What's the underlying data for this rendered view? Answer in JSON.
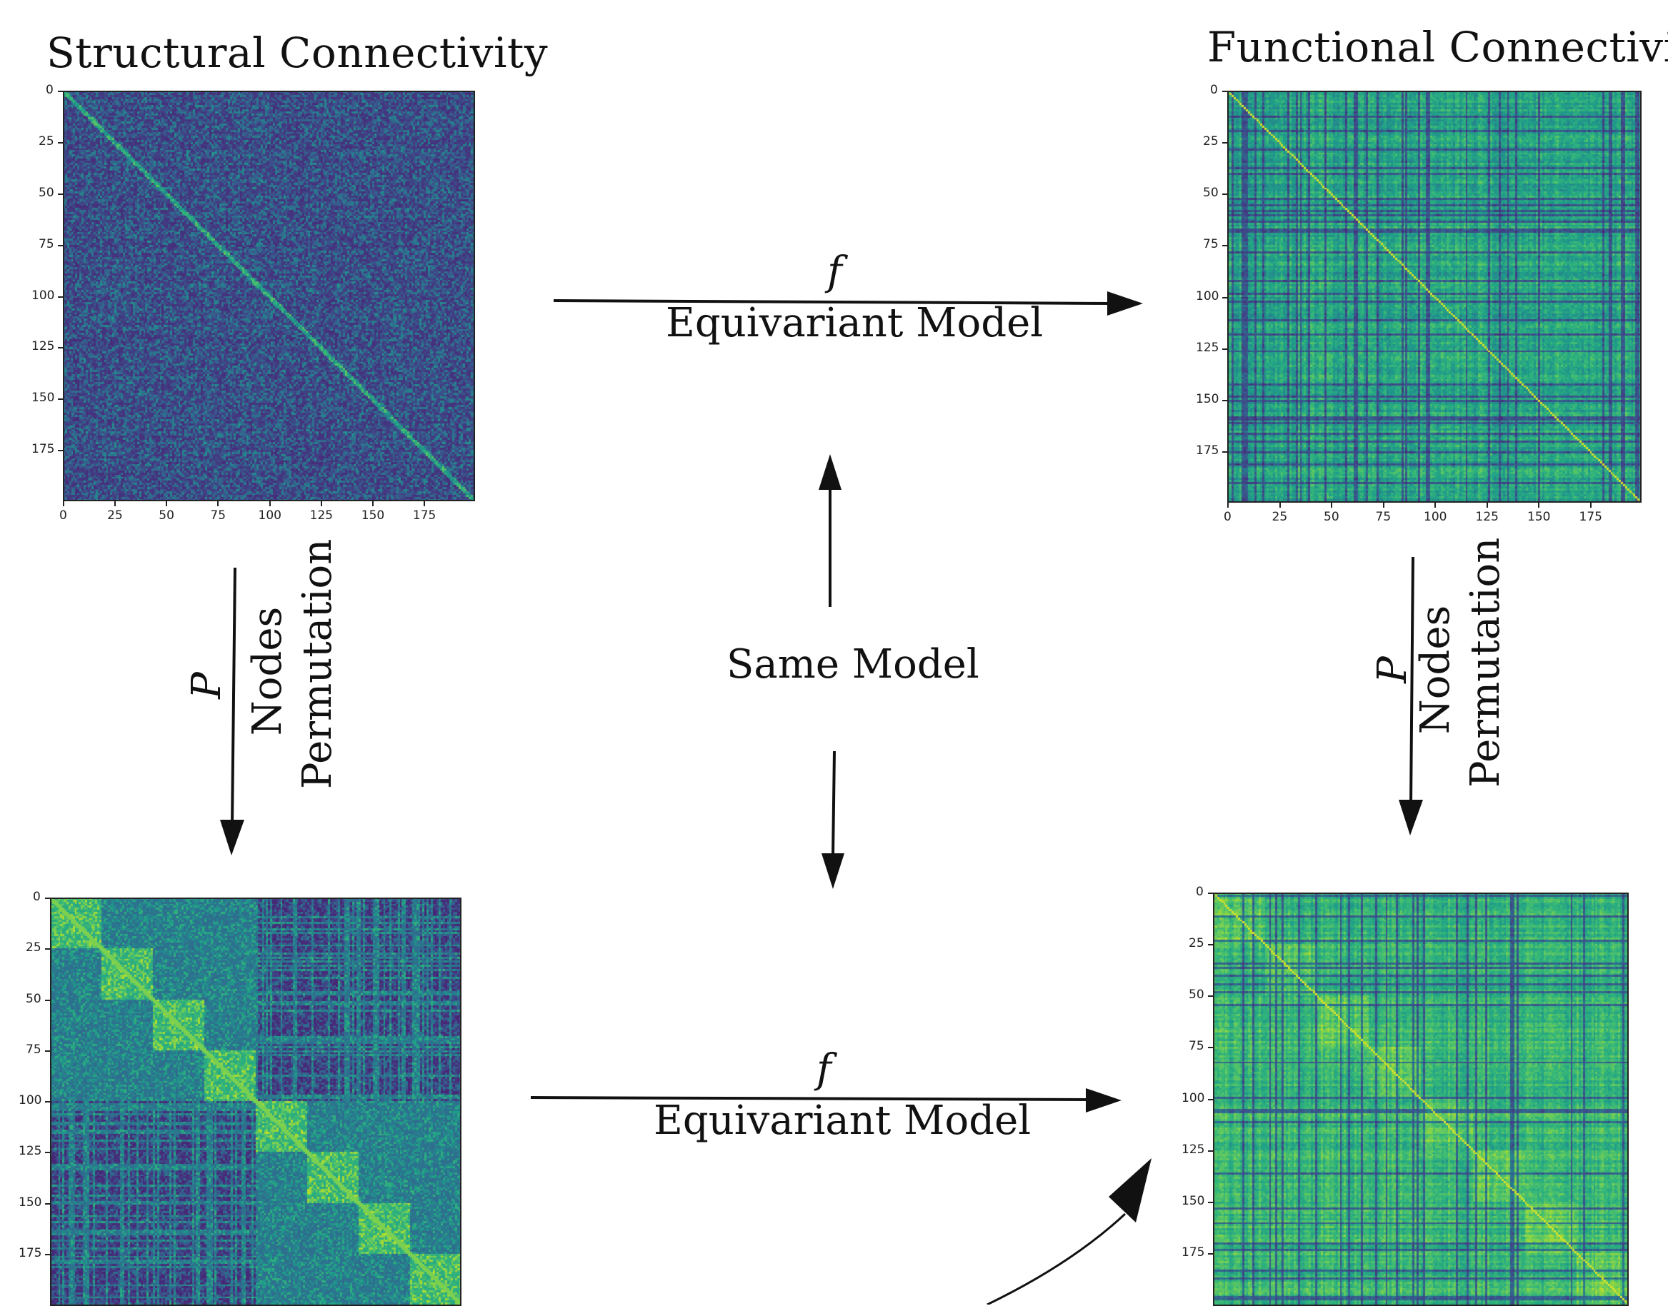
{
  "titles": {
    "structural": "Structural Connectivity",
    "functional": "Functional Connectivity"
  },
  "arrows": {
    "top_symbol": "f",
    "top_label": "Equivariant Model",
    "bottom_symbol": "f",
    "bottom_label": "Equivariant Model",
    "center_label": "Same Model",
    "left_symbol": "P",
    "left_line1": "Nodes",
    "left_line2": "Permutation",
    "right_symbol": "P",
    "right_line1": "Nodes",
    "right_line2": "Permutation"
  },
  "axes": {
    "y_ticks": [
      "0",
      "25",
      "50",
      "75",
      "100",
      "125",
      "150",
      "175"
    ],
    "x_ticks": [
      "0",
      "25",
      "50",
      "75",
      "100",
      "125",
      "150",
      "175"
    ]
  },
  "colors": {
    "viridis_dark": "#440154",
    "viridis_mid": "#21918c",
    "viridis_light": "#fde725"
  }
}
